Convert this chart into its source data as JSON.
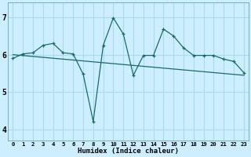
{
  "xlabel": "Humidex (Indice chaleur)",
  "bg_color": "#cceeff",
  "grid_color": "#aadddd",
  "line_color": "#1a6b6b",
  "xlim": [
    -0.5,
    23.5
  ],
  "ylim": [
    3.7,
    7.4
  ],
  "x_ticks": [
    0,
    1,
    2,
    3,
    4,
    5,
    6,
    7,
    8,
    9,
    10,
    11,
    12,
    13,
    14,
    15,
    16,
    17,
    18,
    19,
    20,
    21,
    22,
    23
  ],
  "y_ticks": [
    4,
    5,
    6,
    7
  ],
  "jagged_x": [
    0,
    1,
    2,
    3,
    4,
    5,
    6,
    7,
    8,
    9,
    10,
    11,
    12,
    13,
    14,
    15,
    16,
    17,
    18,
    19,
    20,
    21,
    22,
    23
  ],
  "jagged_y": [
    5.9,
    6.02,
    6.05,
    6.25,
    6.3,
    6.05,
    6.02,
    5.48,
    4.22,
    6.25,
    6.98,
    6.55,
    5.45,
    5.98,
    5.98,
    6.68,
    6.5,
    6.18,
    5.98,
    5.98,
    5.98,
    5.88,
    5.82,
    5.52
  ],
  "trend_x": [
    0,
    23
  ],
  "trend_y": [
    6.0,
    5.45
  ]
}
